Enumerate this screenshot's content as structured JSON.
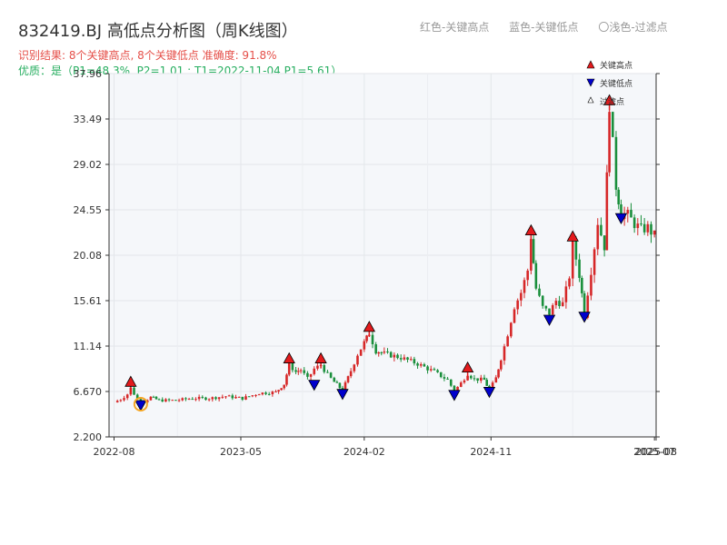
{
  "header": {
    "title": "832419.BJ 高低点分析图（周K线图）",
    "result_line": "识别结果: 8个关键高点, 8个关键低点   准确度: 91.8%",
    "quality_line": "优质：是（P1=48.3%, P2=1.01 ; T1=2022-11-04 P1=5.61）"
  },
  "top_legend": {
    "red": "红色-关键高点",
    "blue": "蓝色-关键低点",
    "light": "〇浅色-过滤点"
  },
  "chart_data": {
    "type": "candlestick",
    "title": "832419.BJ 高低点分析图（周K线图）",
    "ylim": [
      2.2,
      37.96
    ],
    "y_ticks": [
      "2.200",
      "6.670",
      "11.14",
      "15.61",
      "20.08",
      "24.55",
      "29.02",
      "33.49",
      "37.96"
    ],
    "x_ticks": [
      "2022-08",
      "2023-05",
      "2024-02",
      "2024-11",
      "2025-07",
      "2025-08"
    ],
    "legend": {
      "position": "top-right",
      "entries": [
        "关键高点",
        "关键低点",
        "过滤点"
      ]
    },
    "colors": {
      "up": "#d62728",
      "down": "#1a8f3c",
      "high_marker": "#e31a1c",
      "low_marker": "#0000cc",
      "filtered": "#f5a623"
    },
    "series": [
      {
        "name": "price",
        "points": [
          [
            2022.58,
            5.6
          ],
          [
            2022.62,
            5.9
          ],
          [
            2022.66,
            6.4
          ],
          [
            2022.68,
            7.0
          ],
          [
            2022.72,
            5.9
          ],
          [
            2022.76,
            5.7
          ],
          [
            2022.8,
            6.1
          ],
          [
            2022.85,
            5.8
          ],
          [
            2022.95,
            5.8
          ],
          [
            2023.05,
            6.0
          ],
          [
            2023.15,
            6.0
          ],
          [
            2023.25,
            6.2
          ],
          [
            2023.35,
            6.0
          ],
          [
            2023.45,
            6.5
          ],
          [
            2023.55,
            6.6
          ],
          [
            2023.6,
            7.4
          ],
          [
            2023.63,
            9.3
          ],
          [
            2023.67,
            8.6
          ],
          [
            2023.7,
            8.8
          ],
          [
            2023.74,
            7.9
          ],
          [
            2023.78,
            8.9
          ],
          [
            2023.82,
            9.3
          ],
          [
            2023.86,
            8.3
          ],
          [
            2023.9,
            7.6
          ],
          [
            2023.95,
            6.8
          ],
          [
            2024.0,
            8.7
          ],
          [
            2024.04,
            10.3
          ],
          [
            2024.08,
            11.5
          ],
          [
            2024.11,
            12.4
          ],
          [
            2024.15,
            10.7
          ],
          [
            2024.2,
            10.4
          ],
          [
            2024.3,
            10.0
          ],
          [
            2024.4,
            9.4
          ],
          [
            2024.5,
            8.6
          ],
          [
            2024.58,
            7.8
          ],
          [
            2024.62,
            6.7
          ],
          [
            2024.66,
            7.5
          ],
          [
            2024.7,
            8.4
          ],
          [
            2024.74,
            7.9
          ],
          [
            2024.8,
            7.8
          ],
          [
            2024.83,
            6.8
          ],
          [
            2024.87,
            8.0
          ],
          [
            2024.9,
            9.9
          ],
          [
            2024.94,
            12.3
          ],
          [
            2024.98,
            15.0
          ],
          [
            2025.02,
            16.4
          ],
          [
            2025.06,
            18.6
          ],
          [
            2025.08,
            21.9
          ],
          [
            2025.11,
            16.8
          ],
          [
            2025.15,
            14.9
          ],
          [
            2025.19,
            14.4
          ],
          [
            2025.23,
            15.6
          ],
          [
            2025.27,
            15.3
          ],
          [
            2025.31,
            18.0
          ],
          [
            2025.33,
            21.3
          ],
          [
            2025.37,
            18.2
          ],
          [
            2025.4,
            14.3
          ],
          [
            2025.44,
            18.5
          ],
          [
            2025.48,
            23.3
          ],
          [
            2025.52,
            21.0
          ],
          [
            2025.55,
            34.7
          ],
          [
            2025.59,
            27.0
          ],
          [
            2025.62,
            24.2
          ],
          [
            2025.66,
            24.0
          ],
          [
            2025.7,
            23.2
          ],
          [
            2025.74,
            22.6
          ],
          [
            2025.78,
            22.8
          ],
          [
            2025.82,
            22.0
          ]
        ]
      },
      {
        "name": "关键高点",
        "points": [
          [
            2022.68,
            7.0
          ],
          [
            2023.63,
            9.3
          ],
          [
            2023.82,
            9.3
          ],
          [
            2024.11,
            12.4
          ],
          [
            2024.7,
            8.4
          ],
          [
            2025.08,
            21.9
          ],
          [
            2025.33,
            21.3
          ],
          [
            2025.55,
            34.7
          ]
        ]
      },
      {
        "name": "关键低点",
        "points": [
          [
            2022.74,
            5.6
          ],
          [
            2023.78,
            7.6
          ],
          [
            2023.95,
            6.7
          ],
          [
            2024.62,
            6.6
          ],
          [
            2024.83,
            6.9
          ],
          [
            2025.19,
            14.0
          ],
          [
            2025.4,
            14.3
          ],
          [
            2025.62,
            24.0
          ]
        ]
      },
      {
        "name": "过滤点",
        "points": [
          [
            2022.74,
            5.6
          ]
        ]
      }
    ]
  }
}
